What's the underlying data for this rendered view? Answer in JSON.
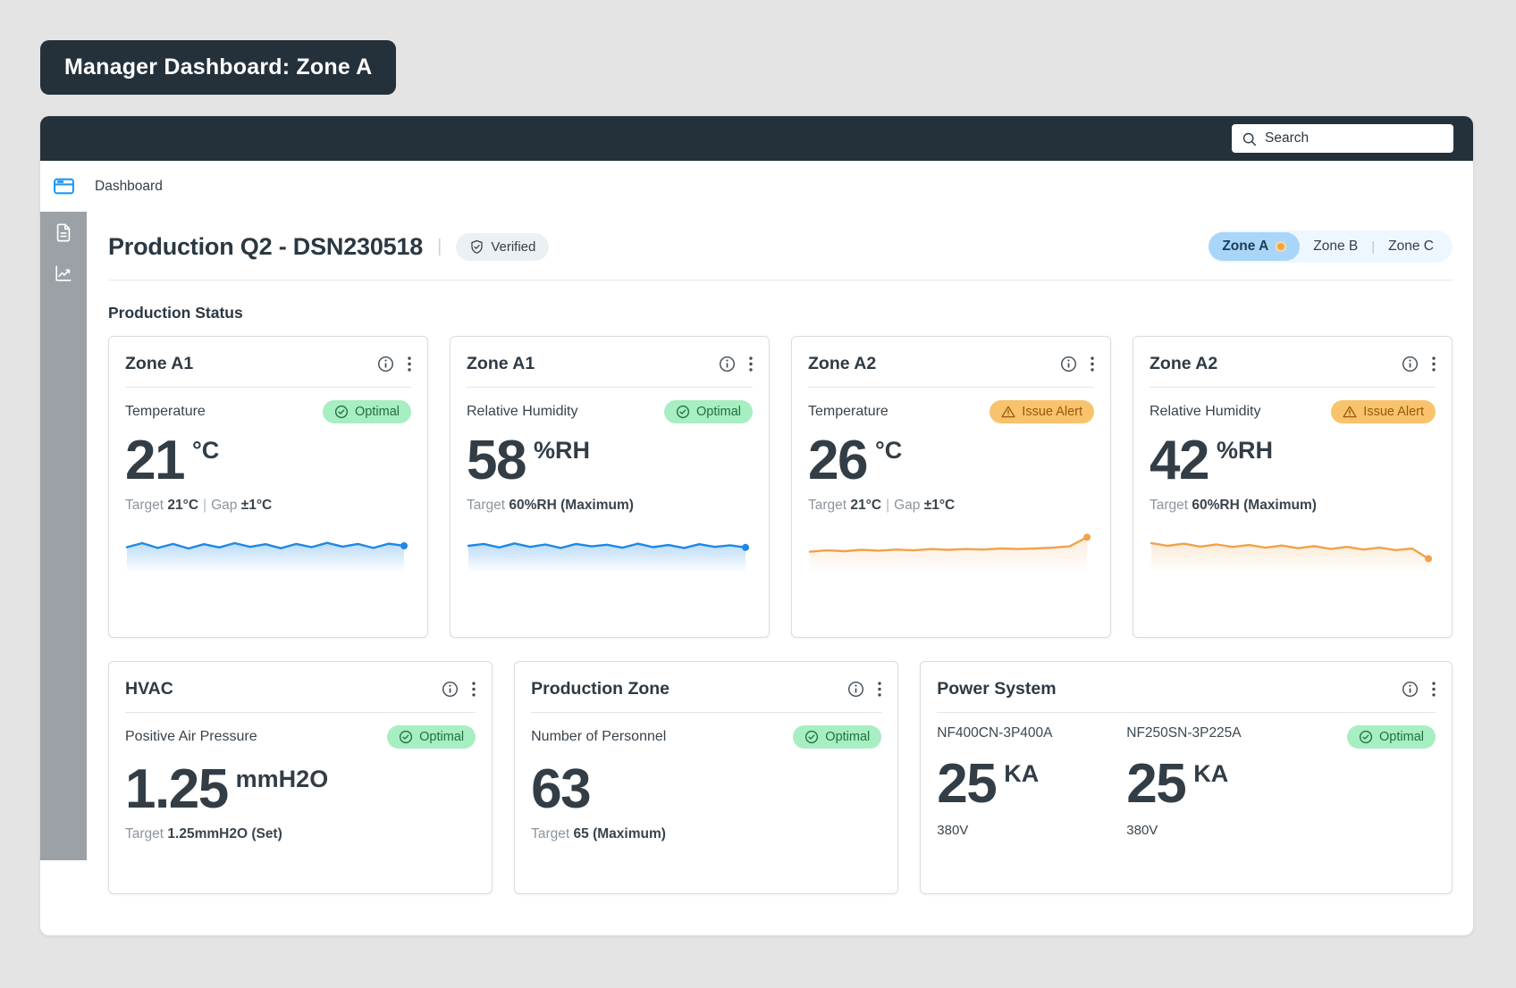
{
  "page_title": "Manager Dashboard: Zone A",
  "topbar": {
    "search_placeholder": "Search"
  },
  "nav": {
    "dashboard_label": "Dashboard"
  },
  "header": {
    "title": "Production Q2 - DSN230518",
    "separator": "|",
    "verified_label": "Verified",
    "tabs": [
      {
        "label": "Zone A"
      },
      {
        "label": "Zone B"
      },
      {
        "label": "Zone C"
      }
    ],
    "tabs_divider": "|",
    "active_tab": "Zone A"
  },
  "section_title": "Production Status",
  "colors": {
    "dark": "#25313a",
    "accent_blue": "#2196f3",
    "sparkline_blue": "#1e88e5",
    "sparkline_orange": "#f0a24b",
    "optimal_bg": "#a7eec2",
    "optimal_text": "#20713f",
    "alert_bg": "#f8c36c",
    "alert_text": "#98590c",
    "active_tab_bg": "#a9d6f8",
    "tab_dot_orange": "#f0a63f"
  },
  "metric_cards": [
    {
      "title": "Zone A1",
      "metric": "Temperature",
      "status": "optimal",
      "status_label": "Optimal",
      "value": "21",
      "unit": "°C",
      "target_label": "Target",
      "target_value": "21°C",
      "divider": "|",
      "gap_label": "Gap",
      "gap_value": "±1°C",
      "sparkline": {
        "color": "#1e88e5",
        "fill_opacity": 0.3,
        "points": [
          0.45,
          0.3,
          0.48,
          0.33,
          0.5,
          0.34,
          0.46,
          0.3,
          0.44,
          0.34,
          0.49,
          0.33,
          0.45,
          0.29,
          0.43,
          0.33,
          0.48,
          0.32,
          0.4
        ]
      }
    },
    {
      "title": "Zone A1",
      "metric": "Relative Humidity",
      "status": "optimal",
      "status_label": "Optimal",
      "value": "58",
      "unit": "%RH",
      "target_label": "Target",
      "target_value": "60%RH (Maximum)",
      "divider": "",
      "gap_label": "",
      "gap_value": "",
      "sparkline": {
        "color": "#1e88e5",
        "fill_opacity": 0.3,
        "points": [
          0.4,
          0.33,
          0.46,
          0.31,
          0.44,
          0.35,
          0.48,
          0.33,
          0.42,
          0.36,
          0.47,
          0.32,
          0.45,
          0.37,
          0.48,
          0.34,
          0.44,
          0.38,
          0.46
        ]
      }
    },
    {
      "title": "Zone A2",
      "metric": "Temperature",
      "status": "issue",
      "status_label": "Issue Alert",
      "value": "26",
      "unit": "°C",
      "target_label": "Target",
      "target_value": "21°C",
      "divider": "|",
      "gap_label": "Gap",
      "gap_value": "±1°C",
      "sparkline": {
        "color": "#f0a24b",
        "fill_opacity": 0.22,
        "points": [
          0.62,
          0.57,
          0.6,
          0.55,
          0.58,
          0.54,
          0.57,
          0.52,
          0.55,
          0.52,
          0.54,
          0.5,
          0.52,
          0.5,
          0.47,
          0.42,
          0.08
        ]
      }
    },
    {
      "title": "Zone A2",
      "metric": "Relative Humidity",
      "status": "issue",
      "status_label": "Issue Alert",
      "value": "42",
      "unit": "%RH",
      "target_label": "Target",
      "target_value": "60%RH (Maximum)",
      "divider": "",
      "gap_label": "",
      "gap_value": "",
      "sparkline": {
        "color": "#f0a24b",
        "fill_opacity": 0.22,
        "points": [
          0.3,
          0.4,
          0.32,
          0.43,
          0.35,
          0.44,
          0.37,
          0.47,
          0.39,
          0.49,
          0.41,
          0.52,
          0.44,
          0.54,
          0.47,
          0.56,
          0.5,
          0.88
        ]
      }
    }
  ],
  "wide_cards": {
    "hvac": {
      "title": "HVAC",
      "metric": "Positive Air Pressure",
      "status_label": "Optimal",
      "value": "1.25",
      "unit": "mmH2O",
      "target_label": "Target",
      "target_value": "1.25mmH2O (Set)"
    },
    "production": {
      "title": "Production Zone",
      "metric": "Number of Personnel",
      "status_label": "Optimal",
      "value": "63",
      "target_label": "Target",
      "target_value": "65 (Maximum)"
    },
    "power": {
      "title": "Power System",
      "status_label": "Optimal",
      "readings": [
        {
          "name": "NF400CN-3P400A",
          "value": "25",
          "unit": "KA",
          "voltage": "380V"
        },
        {
          "name": "NF250SN-3P225A",
          "value": "25",
          "unit": "KA",
          "voltage": "380V"
        }
      ]
    }
  }
}
